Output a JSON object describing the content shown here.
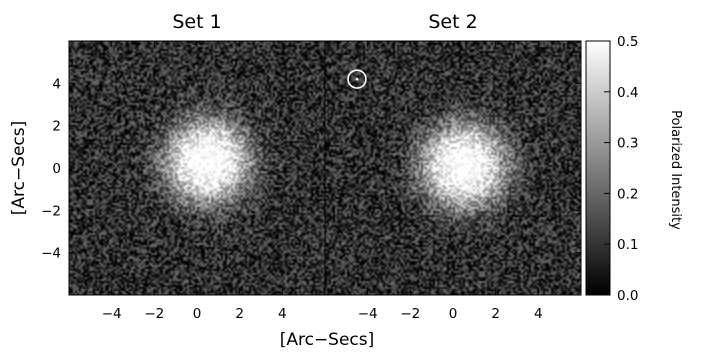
{
  "chart_data": {
    "type": "heatmap",
    "panels": [
      {
        "title": "Set 1",
        "x_ticks": [
          -4,
          -2,
          0,
          2,
          4
        ],
        "x_tick_labels": [
          "−4",
          "−2",
          "0",
          "2",
          "4"
        ],
        "xlim": [
          -6,
          6
        ],
        "source_center": [
          0.5,
          0.3
        ],
        "source_radius": 2.0
      },
      {
        "title": "Set 2",
        "x_ticks": [
          -4,
          -2,
          0,
          2,
          4
        ],
        "x_tick_labels": [
          "−4",
          "−2",
          "0",
          "2",
          "4"
        ],
        "xlim": [
          -6,
          6
        ],
        "source_center": [
          0.5,
          0.1
        ],
        "source_radius": 2.0,
        "annotation": {
          "shape": "circle",
          "center": [
            -4.5,
            4.2
          ],
          "radius": 0.42,
          "color": "#ffffff"
        }
      }
    ],
    "ylim": [
      -6,
      6
    ],
    "y_ticks": [
      4,
      2,
      0,
      -2,
      -4
    ],
    "y_tick_labels": [
      "4",
      "2",
      "0",
      "−2",
      "−4"
    ],
    "xlabel": "[Arc−Secs]",
    "ylabel": "[Arc−Secs]",
    "colorbar": {
      "label": "Polarized Intensity",
      "range": [
        0.0,
        0.5
      ],
      "ticks": [
        "0.5",
        "0.4",
        "0.3",
        "0.2",
        "0.1",
        "0.0"
      ],
      "colormap": "grayscale",
      "min_color": "#000000",
      "max_color": "#ffffff"
    }
  }
}
